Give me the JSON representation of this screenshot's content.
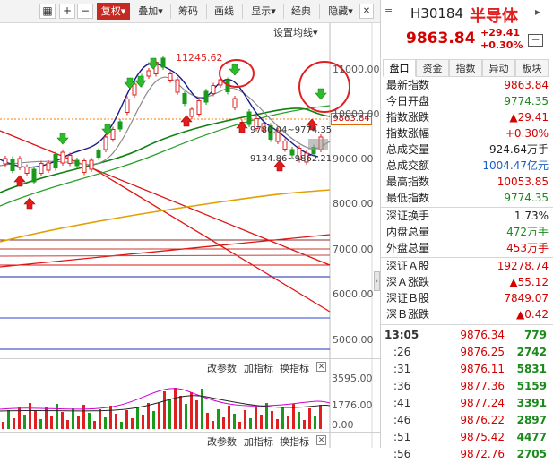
{
  "toolbar": {
    "restore_label": "复权",
    "overlay_label": "叠加",
    "chips_label": "筹码",
    "draw_label": "画线",
    "display_label": "显示",
    "classic_label": "经典",
    "hide_label": "隐藏",
    "plus_label": "+",
    "minus_label": "−"
  },
  "chart": {
    "ma_settings_label": "设置均线",
    "high_marker": "11245.62",
    "price_tag": "9863.84",
    "annot_mid": "9780.04~9774.35",
    "annot_low": "9134.86~9862.21",
    "y_labels": [
      "11000.00",
      "10000.00",
      "9000.00",
      "8000.00",
      "7000.00",
      "6000.00",
      "5000.00"
    ],
    "indicator1": {
      "modify": "改参数",
      "add": "加指标",
      "switch": "换指标",
      "vol_top": "3595.00",
      "vol_mid": "1776.00",
      "vol_zero": "0.00"
    },
    "indicator2": {
      "modify": "改参数",
      "add": "加指标",
      "switch": "换指标"
    },
    "close_glyph": "✕"
  },
  "chart_data": {
    "type": "candlestick",
    "y_axis_labels": [
      11000,
      10000,
      9000,
      8000,
      7000,
      6000,
      5000
    ],
    "current_price": 9863.84,
    "annotated_high": 11245.62
  },
  "quote": {
    "code": "H30184",
    "name": "半导体",
    "price": "9863.84",
    "change": "+29.41",
    "change_pct": "+0.30%",
    "minus_button": "−",
    "tabs": [
      "盘口",
      "资金",
      "指数",
      "异动",
      "板块"
    ],
    "fields": [
      {
        "k": "最新指数",
        "v": "9863.84",
        "c": "#d40000"
      },
      {
        "k": "今日开盘",
        "v": "9774.35",
        "c": "#1a8a1a"
      },
      {
        "k": "指数涨跌",
        "v": "▲29.41",
        "c": "#d40000"
      },
      {
        "k": "指数涨幅",
        "v": "+0.30%",
        "c": "#d40000"
      },
      {
        "k": "总成交量",
        "v": "924.64万手",
        "c": "#222"
      },
      {
        "k": "总成交额",
        "v": "1004.47亿元",
        "c": "#1a5fc7"
      },
      {
        "k": "最高指数",
        "v": "10053.85",
        "c": "#d40000"
      },
      {
        "k": "最低指数",
        "v": "9774.35",
        "c": "#1a8a1a"
      }
    ],
    "fields2": [
      {
        "k": "深证换手",
        "v": "1.73%",
        "c": "#222"
      },
      {
        "k": "内盘总量",
        "v": "472万手",
        "c": "#1a8a1a"
      },
      {
        "k": "外盘总量",
        "v": "453万手",
        "c": "#d40000"
      }
    ],
    "fields3": [
      {
        "k": "深证Ａ股",
        "v": "19278.74",
        "c": "#d40000"
      },
      {
        "k": "深Ａ涨跌",
        "v": "▲55.12",
        "c": "#d40000"
      },
      {
        "k": "深证Ｂ股",
        "v": "7849.07",
        "c": "#d40000"
      },
      {
        "k": "深Ｂ涨跌",
        "v": "▲0.42",
        "c": "#d40000"
      }
    ],
    "ticks": [
      {
        "t": "13:05",
        "p": "9876.34",
        "n": "779"
      },
      {
        "t": ":26",
        "p": "9876.25",
        "n": "2742"
      },
      {
        "t": ":31",
        "p": "9876.11",
        "n": "5831"
      },
      {
        "t": ":36",
        "p": "9877.36",
        "n": "5159"
      },
      {
        "t": ":41",
        "p": "9877.24",
        "n": "3391"
      },
      {
        "t": ":46",
        "p": "9876.22",
        "n": "2897"
      },
      {
        "t": ":51",
        "p": "9875.42",
        "n": "4477"
      },
      {
        "t": ":56",
        "p": "9872.76",
        "n": "2705"
      }
    ]
  }
}
